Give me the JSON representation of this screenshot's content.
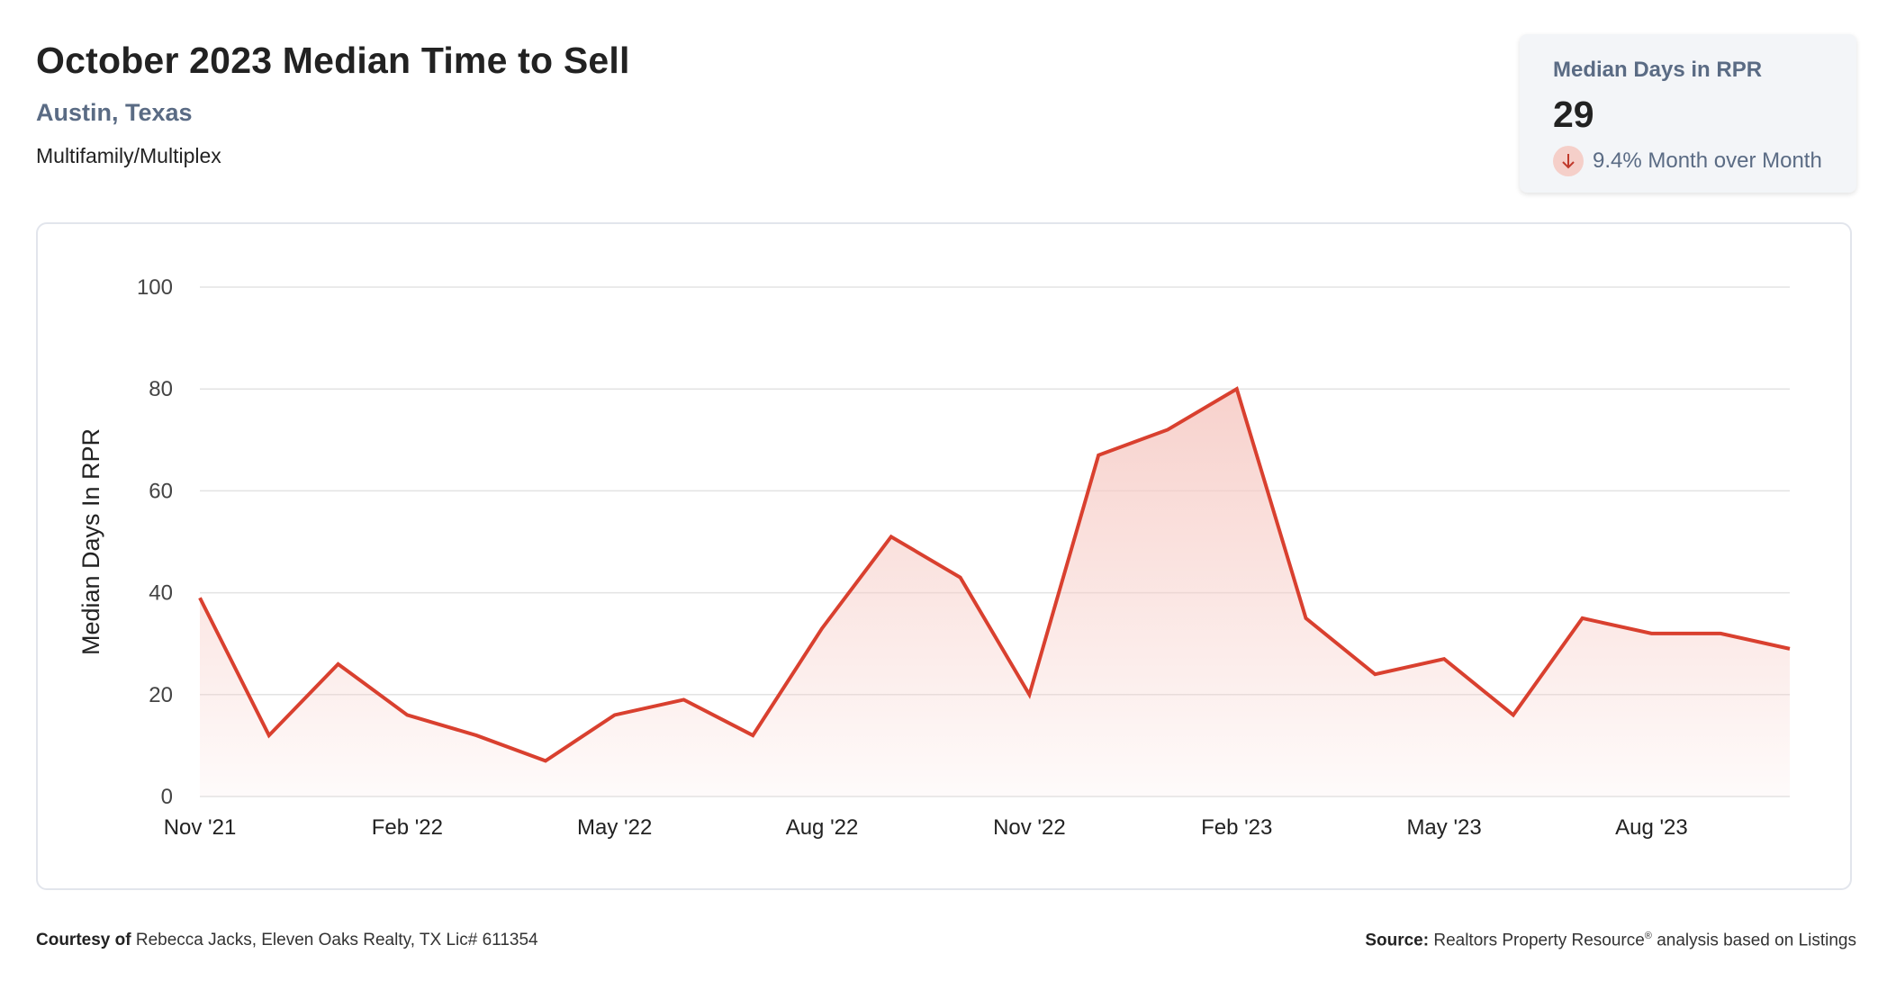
{
  "header": {
    "title": "October 2023 Median Time to Sell",
    "location": "Austin, Texas",
    "category": "Multifamily/Multiplex"
  },
  "stat_card": {
    "label": "Median Days in RPR",
    "value": "29",
    "change": "9.4% Month over Month",
    "direction_icon": "arrow-down-icon"
  },
  "colors": {
    "line": "#d9402f",
    "fill": "#f6c9c3",
    "grid": "#e3e3e3",
    "subtitle": "#5a6b84",
    "down_badge": "#f5cfc9"
  },
  "chart_data": {
    "type": "area",
    "ylabel": "Median Days In RPR",
    "xlabel": "",
    "ylim": [
      0,
      100
    ],
    "yticks": [
      0,
      20,
      40,
      60,
      80,
      100
    ],
    "grid": true,
    "x": [
      "Nov '21",
      "Dec '21",
      "Jan '22",
      "Feb '22",
      "Mar '22",
      "Apr '22",
      "May '22",
      "Jun '22",
      "Jul '22",
      "Aug '22",
      "Sep '22",
      "Oct '22",
      "Nov '22",
      "Dec '22",
      "Jan '23",
      "Feb '23",
      "Mar '23",
      "Apr '23",
      "May '23",
      "Jun '23",
      "Jul '23",
      "Aug '23",
      "Sep '23",
      "Oct '23"
    ],
    "xtick_labels": [
      "Nov '21",
      "Feb '22",
      "May '22",
      "Aug '22",
      "Nov '22",
      "Feb '23",
      "May '23",
      "Aug '23"
    ],
    "xtick_indices": [
      0,
      3,
      6,
      9,
      12,
      15,
      18,
      21
    ],
    "values": [
      39,
      12,
      26,
      16,
      12,
      7,
      16,
      19,
      12,
      33,
      51,
      43,
      20,
      67,
      72,
      80,
      35,
      24,
      27,
      16,
      35,
      32,
      32,
      29
    ]
  },
  "footer": {
    "courtesy_label": "Courtesy of",
    "courtesy_text": "Rebecca Jacks, Eleven Oaks Realty, TX Lic# 611354",
    "source_label": "Source:",
    "source_name": "Realtors Property Resource",
    "source_mark": "®",
    "source_text": "analysis based on Listings"
  }
}
